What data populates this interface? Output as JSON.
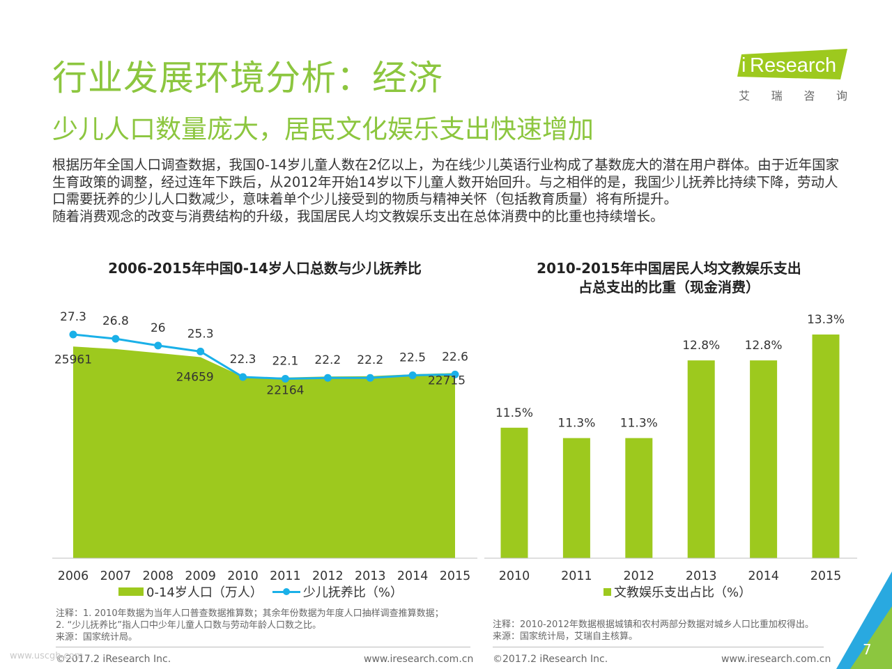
{
  "title": "行业发展环境分析：经济",
  "subtitle": "少儿人口数量庞大，居民文化娱乐支出快速增加",
  "logo": {
    "brand_i": "i",
    "brand_rest": "Research",
    "chars": [
      "艾",
      "瑞",
      "咨",
      "询"
    ]
  },
  "intro": {
    "p1": "根据历年全国人口调查数据，我国0-14岁儿童人数在2亿以上，为在线少儿英语行业构成了基数庞大的潜在用户群体。由于近年国家生育政策的调整，经过连年下跌后，从2012年开始14岁以下儿童人数开始回升。与之相伴的是，我国少儿抚养比持续下降，劳动人口需要抚养的少儿人口数减少，意味着单个少儿接受到的物质与精神关怀（包括教育质量）将有所提升。",
    "p2": "随着消费观念的改变与消费结构的升级，我国居民人均文教娱乐支出在总体消费中的比重也持续增长。"
  },
  "chart_data": [
    {
      "type": "area",
      "title": "2006-2015年中国0-14岁人口总数与少儿抚养比",
      "x": [
        "2006",
        "2007",
        "2008",
        "2009",
        "2010",
        "2011",
        "2012",
        "2013",
        "2014",
        "2015"
      ],
      "series": [
        {
          "name": "0-14岁人口（万人）",
          "type": "area",
          "values": [
            25961,
            25660,
            25166,
            24659,
            22259,
            22164,
            22287,
            22329,
            22558,
            22715
          ],
          "labels": [
            "25961",
            "",
            "",
            "24659",
            "",
            "22164",
            "",
            "",
            "",
            "22715"
          ]
        },
        {
          "name": "少儿抚养比（%）",
          "type": "line",
          "values": [
            27.3,
            26.8,
            26,
            25.3,
            22.3,
            22.1,
            22.2,
            22.2,
            22.5,
            22.6
          ],
          "labels": [
            "27.3",
            "26.8",
            "26",
            "25.3",
            "22.3",
            "22.1",
            "22.2",
            "22.2",
            "22.5",
            "22.6"
          ]
        }
      ],
      "colors": {
        "area": "#9dc91e",
        "line": "#1ab0e8"
      },
      "legend": "bottom"
    },
    {
      "type": "bar",
      "title_lines": [
        "2010-2015年中国居民人均文教娱乐支出",
        "占总支出的比重（现金消费）"
      ],
      "categories": [
        "2010",
        "2011",
        "2012",
        "2013",
        "2014",
        "2015"
      ],
      "series": [
        {
          "name": "文教娱乐支出占比（%）",
          "values": [
            11.5,
            11.3,
            11.3,
            12.8,
            12.8,
            13.3
          ],
          "labels": [
            "11.5%",
            "11.3%",
            "11.3%",
            "12.8%",
            "12.8%",
            "13.3%"
          ]
        }
      ],
      "colors": {
        "bar": "#9dc91e"
      },
      "legend": "bottom"
    }
  ],
  "notes": {
    "left": [
      "注释：1. 2010年数据为当年人口普查数据推算数；其余年份数据为年度人口抽样调查推算数据；",
      "2. “少儿抚养比”指人口中少年儿童人口数与劳动年龄人口数之比。",
      "来源：国家统计局。"
    ],
    "right": [
      "注释：2010-2012年数据根据城镇和农村两部分数据对城乡人口比重加权得出。",
      "来源：国家统计局，艾瑞自主核算。"
    ]
  },
  "footer": {
    "left_copyright": "©2017.2 iResearch Inc.",
    "left_url": "www.iresearch.com.cn",
    "right_copyright": "©2017.2 iResearch Inc.",
    "right_url": "www.iresearch.com.cn",
    "page": "7",
    "watermark": "www.uscgh.com"
  }
}
